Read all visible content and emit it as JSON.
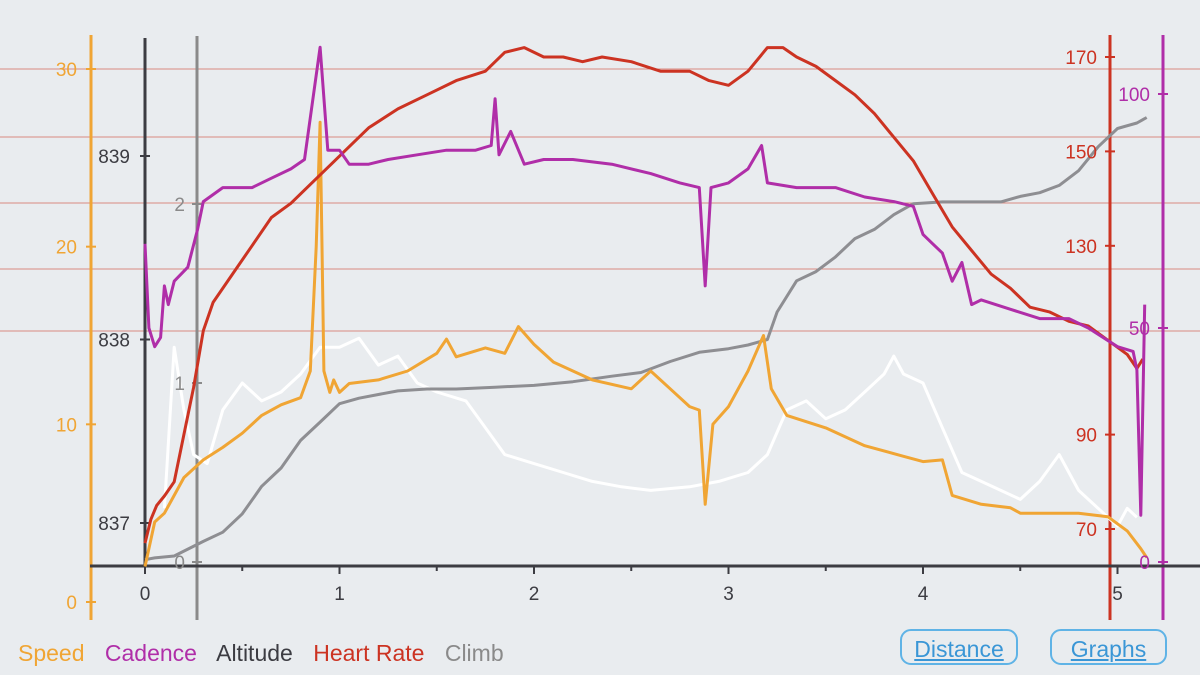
{
  "legend": {
    "speed": "Speed",
    "cadence": "Cadence",
    "altitude": "Altitude",
    "heart_rate": "Heart Rate",
    "climb": "Climb"
  },
  "buttons": {
    "distance": "Distance",
    "graphs": "Graphs"
  },
  "colors": {
    "speed": "#f0a534",
    "cadence": "#b02ea8",
    "altitude": "#3c3c42",
    "heart_rate": "#cc3322",
    "climb": "#8a8a8a",
    "climb_light": "#ffffff",
    "gridline": "#d98a80",
    "button": "#3a96d6",
    "background": "#e9ecef"
  },
  "chart_data": {
    "type": "line",
    "xlabel": "Distance",
    "x_ticks": [
      "0",
      "1",
      "2",
      "3",
      "4",
      "5"
    ],
    "x_range": [
      0,
      5.15
    ],
    "axes": {
      "speed": {
        "range": [
          0,
          30
        ],
        "ticks": [
          "0",
          "10",
          "20",
          "30"
        ]
      },
      "altitude": {
        "range": [
          836.8,
          839.3
        ],
        "ticks": [
          "837",
          "838",
          "839"
        ]
      },
      "climb": {
        "range": [
          0,
          2.3
        ],
        "ticks": [
          "0",
          "1",
          "2"
        ]
      },
      "heart_rate": {
        "range": [
          65,
          174
        ],
        "ticks": [
          "70",
          "90",
          "130",
          "150",
          "170"
        ]
      },
      "cadence": {
        "range": [
          0,
          100
        ],
        "ticks": [
          "0",
          "50",
          "100"
        ]
      }
    },
    "series": [
      {
        "name": "Heart Rate",
        "axis": "heart_rate",
        "points": [
          [
            0,
            67
          ],
          [
            0.03,
            72
          ],
          [
            0.06,
            75
          ],
          [
            0.1,
            77
          ],
          [
            0.15,
            80
          ],
          [
            0.2,
            90
          ],
          [
            0.25,
            100
          ],
          [
            0.3,
            112
          ],
          [
            0.35,
            118
          ],
          [
            0.45,
            124
          ],
          [
            0.55,
            130
          ],
          [
            0.65,
            136
          ],
          [
            0.75,
            139
          ],
          [
            0.85,
            143
          ],
          [
            0.95,
            147
          ],
          [
            1.05,
            151
          ],
          [
            1.15,
            155
          ],
          [
            1.3,
            159
          ],
          [
            1.45,
            162
          ],
          [
            1.6,
            165
          ],
          [
            1.75,
            167
          ],
          [
            1.85,
            171
          ],
          [
            1.95,
            172
          ],
          [
            2.05,
            170
          ],
          [
            2.15,
            170
          ],
          [
            2.25,
            169
          ],
          [
            2.35,
            170
          ],
          [
            2.5,
            169
          ],
          [
            2.65,
            167
          ],
          [
            2.8,
            167
          ],
          [
            2.9,
            165
          ],
          [
            3.0,
            164
          ],
          [
            3.1,
            167
          ],
          [
            3.2,
            172
          ],
          [
            3.28,
            172
          ],
          [
            3.35,
            170
          ],
          [
            3.45,
            168
          ],
          [
            3.55,
            165
          ],
          [
            3.65,
            162
          ],
          [
            3.75,
            158
          ],
          [
            3.85,
            153
          ],
          [
            3.95,
            148
          ],
          [
            4.05,
            141
          ],
          [
            4.15,
            134
          ],
          [
            4.25,
            129
          ],
          [
            4.35,
            124
          ],
          [
            4.45,
            121
          ],
          [
            4.55,
            117
          ],
          [
            4.65,
            116
          ],
          [
            4.75,
            114
          ],
          [
            4.85,
            113
          ],
          [
            4.95,
            110
          ],
          [
            5.05,
            107
          ],
          [
            5.1,
            104
          ],
          [
            5.13,
            106
          ]
        ]
      },
      {
        "name": "Cadence",
        "axis": "cadence",
        "points": [
          [
            0,
            68
          ],
          [
            0.02,
            50
          ],
          [
            0.05,
            46
          ],
          [
            0.08,
            48
          ],
          [
            0.1,
            59
          ],
          [
            0.12,
            55
          ],
          [
            0.15,
            60
          ],
          [
            0.22,
            63
          ],
          [
            0.27,
            71
          ],
          [
            0.3,
            77
          ],
          [
            0.4,
            80
          ],
          [
            0.55,
            80
          ],
          [
            0.65,
            82
          ],
          [
            0.75,
            84
          ],
          [
            0.82,
            86
          ],
          [
            0.9,
            110
          ],
          [
            0.94,
            88
          ],
          [
            1.0,
            88
          ],
          [
            1.05,
            85
          ],
          [
            1.15,
            85
          ],
          [
            1.25,
            86
          ],
          [
            1.4,
            87
          ],
          [
            1.55,
            88
          ],
          [
            1.7,
            88
          ],
          [
            1.78,
            89
          ],
          [
            1.8,
            99
          ],
          [
            1.82,
            87
          ],
          [
            1.88,
            92
          ],
          [
            1.95,
            85
          ],
          [
            2.05,
            86
          ],
          [
            2.2,
            86
          ],
          [
            2.4,
            85
          ],
          [
            2.6,
            83
          ],
          [
            2.75,
            81
          ],
          [
            2.85,
            80
          ],
          [
            2.88,
            59
          ],
          [
            2.91,
            80
          ],
          [
            3.0,
            81
          ],
          [
            3.1,
            84
          ],
          [
            3.17,
            89
          ],
          [
            3.2,
            81
          ],
          [
            3.35,
            80
          ],
          [
            3.55,
            80
          ],
          [
            3.7,
            78
          ],
          [
            3.85,
            77
          ],
          [
            3.95,
            76
          ],
          [
            4.0,
            70
          ],
          [
            4.05,
            68
          ],
          [
            4.1,
            66
          ],
          [
            4.15,
            60
          ],
          [
            4.2,
            64
          ],
          [
            4.25,
            55
          ],
          [
            4.3,
            56
          ],
          [
            4.45,
            54
          ],
          [
            4.6,
            52
          ],
          [
            4.75,
            52
          ],
          [
            4.85,
            50
          ],
          [
            5.0,
            46
          ],
          [
            5.08,
            45
          ],
          [
            5.1,
            41
          ],
          [
            5.12,
            10
          ],
          [
            5.14,
            55
          ]
        ]
      },
      {
        "name": "Altitude",
        "axis": "altitude",
        "points": [
          [
            0,
            836.8
          ],
          [
            0.05,
            836.81
          ],
          [
            0.15,
            836.82
          ],
          [
            0.3,
            836.9
          ],
          [
            0.4,
            836.95
          ],
          [
            0.5,
            837.05
          ],
          [
            0.6,
            837.2
          ],
          [
            0.7,
            837.3
          ],
          [
            0.8,
            837.45
          ],
          [
            0.9,
            837.55
          ],
          [
            1.0,
            837.65
          ],
          [
            1.1,
            837.68
          ],
          [
            1.2,
            837.7
          ],
          [
            1.3,
            837.72
          ],
          [
            1.45,
            837.73
          ],
          [
            1.6,
            837.73
          ],
          [
            1.8,
            837.74
          ],
          [
            2.0,
            837.75
          ],
          [
            2.2,
            837.77
          ],
          [
            2.4,
            837.8
          ],
          [
            2.55,
            837.82
          ],
          [
            2.7,
            837.88
          ],
          [
            2.85,
            837.93
          ],
          [
            3.0,
            837.95
          ],
          [
            3.1,
            837.97
          ],
          [
            3.2,
            838.0
          ],
          [
            3.25,
            838.15
          ],
          [
            3.35,
            838.32
          ],
          [
            3.45,
            838.37
          ],
          [
            3.55,
            838.45
          ],
          [
            3.65,
            838.55
          ],
          [
            3.75,
            838.6
          ],
          [
            3.85,
            838.68
          ],
          [
            3.95,
            838.74
          ],
          [
            4.1,
            838.75
          ],
          [
            4.25,
            838.75
          ],
          [
            4.4,
            838.75
          ],
          [
            4.5,
            838.78
          ],
          [
            4.6,
            838.8
          ],
          [
            4.7,
            838.84
          ],
          [
            4.8,
            838.92
          ],
          [
            4.9,
            839.05
          ],
          [
            5.0,
            839.15
          ],
          [
            5.1,
            839.18
          ],
          [
            5.15,
            839.21
          ]
        ]
      },
      {
        "name": "Speed",
        "axis": "speed",
        "points": [
          [
            0,
            2.0
          ],
          [
            0.05,
            4.5
          ],
          [
            0.1,
            5.0
          ],
          [
            0.15,
            6.0
          ],
          [
            0.2,
            7.0
          ],
          [
            0.3,
            8.0
          ],
          [
            0.4,
            8.7
          ],
          [
            0.5,
            9.5
          ],
          [
            0.6,
            10.5
          ],
          [
            0.7,
            11.1
          ],
          [
            0.8,
            11.5
          ],
          [
            0.85,
            13.0
          ],
          [
            0.88,
            20.0
          ],
          [
            0.9,
            27.0
          ],
          [
            0.92,
            13.0
          ],
          [
            0.95,
            11.8
          ],
          [
            0.97,
            12.5
          ],
          [
            1.0,
            11.8
          ],
          [
            1.05,
            12.3
          ],
          [
            1.2,
            12.5
          ],
          [
            1.35,
            13.0
          ],
          [
            1.5,
            14.0
          ],
          [
            1.55,
            14.8
          ],
          [
            1.6,
            13.8
          ],
          [
            1.75,
            14.3
          ],
          [
            1.85,
            14.0
          ],
          [
            1.92,
            15.5
          ],
          [
            2.0,
            14.5
          ],
          [
            2.1,
            13.5
          ],
          [
            2.3,
            12.5
          ],
          [
            2.5,
            12.0
          ],
          [
            2.6,
            13.0
          ],
          [
            2.7,
            12.0
          ],
          [
            2.8,
            11.0
          ],
          [
            2.85,
            10.8
          ],
          [
            2.88,
            5.5
          ],
          [
            2.92,
            10.0
          ],
          [
            3.0,
            11.0
          ],
          [
            3.1,
            13.0
          ],
          [
            3.18,
            15.0
          ],
          [
            3.22,
            12.0
          ],
          [
            3.3,
            10.5
          ],
          [
            3.5,
            9.8
          ],
          [
            3.7,
            8.8
          ],
          [
            3.9,
            8.2
          ],
          [
            4.0,
            7.9
          ],
          [
            4.1,
            8.0
          ],
          [
            4.15,
            6.0
          ],
          [
            4.3,
            5.5
          ],
          [
            4.45,
            5.3
          ],
          [
            4.5,
            5.0
          ],
          [
            4.6,
            5.0
          ],
          [
            4.8,
            5.0
          ],
          [
            4.95,
            4.8
          ],
          [
            5.05,
            4.0
          ],
          [
            5.12,
            3.0
          ],
          [
            5.15,
            2.5
          ]
        ]
      },
      {
        "name": "Climb",
        "axis": "climb",
        "points": [
          [
            0.1,
            0.3
          ],
          [
            0.15,
            1.2
          ],
          [
            0.2,
            0.85
          ],
          [
            0.25,
            0.6
          ],
          [
            0.32,
            0.55
          ],
          [
            0.4,
            0.85
          ],
          [
            0.5,
            1.0
          ],
          [
            0.6,
            0.9
          ],
          [
            0.7,
            0.95
          ],
          [
            0.8,
            1.05
          ],
          [
            0.9,
            1.2
          ],
          [
            1.0,
            1.2
          ],
          [
            1.1,
            1.25
          ],
          [
            1.2,
            1.1
          ],
          [
            1.3,
            1.15
          ],
          [
            1.4,
            1.0
          ],
          [
            1.5,
            0.95
          ],
          [
            1.65,
            0.9
          ],
          [
            1.75,
            0.75
          ],
          [
            1.85,
            0.6
          ],
          [
            2.0,
            0.55
          ],
          [
            2.15,
            0.5
          ],
          [
            2.3,
            0.45
          ],
          [
            2.45,
            0.42
          ],
          [
            2.6,
            0.4
          ],
          [
            2.8,
            0.42
          ],
          [
            2.95,
            0.45
          ],
          [
            3.1,
            0.5
          ],
          [
            3.2,
            0.6
          ],
          [
            3.3,
            0.85
          ],
          [
            3.4,
            0.9
          ],
          [
            3.5,
            0.8
          ],
          [
            3.6,
            0.85
          ],
          [
            3.7,
            0.95
          ],
          [
            3.8,
            1.05
          ],
          [
            3.85,
            1.15
          ],
          [
            3.9,
            1.05
          ],
          [
            4.0,
            1.0
          ],
          [
            4.1,
            0.75
          ],
          [
            4.2,
            0.5
          ],
          [
            4.3,
            0.45
          ],
          [
            4.4,
            0.4
          ],
          [
            4.5,
            0.35
          ],
          [
            4.6,
            0.45
          ],
          [
            4.7,
            0.6
          ],
          [
            4.8,
            0.4
          ],
          [
            4.9,
            0.3
          ],
          [
            5.0,
            0.2
          ],
          [
            5.05,
            0.3
          ],
          [
            5.1,
            0.25
          ]
        ]
      }
    ]
  }
}
